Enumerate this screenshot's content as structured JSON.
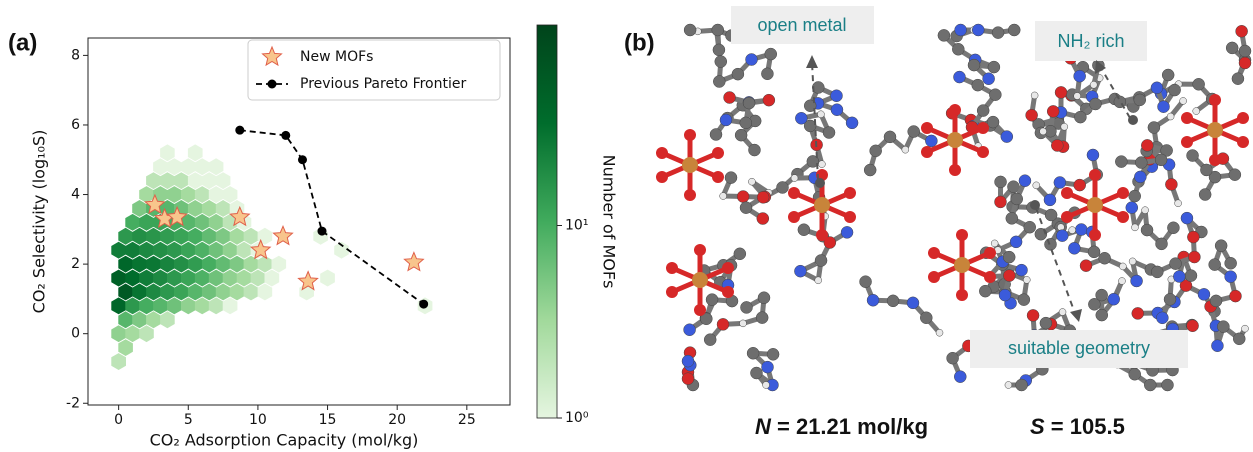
{
  "panel_labels": [
    "(a)",
    "(b)"
  ],
  "chart_data": {
    "type": "hexbin",
    "x_label": "CO₂ Adsorption Capacity (mol/kg)",
    "y_label": "CO₂ Selectivity (log₁₀S)",
    "xlim": [
      -2.2,
      28.1
    ],
    "ylim": [
      -2.05,
      8.5
    ],
    "xticks": [
      0,
      5,
      10,
      15,
      20,
      25
    ],
    "yticks": [
      -2,
      0,
      2,
      4,
      6,
      8
    ],
    "hexbin": [
      {
        "y": -0.8,
        "x": [
          0
        ],
        "counts": [
          2
        ]
      },
      {
        "y": -0.4,
        "x": [
          0.5
        ],
        "counts": [
          3
        ]
      },
      {
        "y": 0.0,
        "x": [
          0,
          1,
          2
        ],
        "counts": [
          4,
          3,
          2
        ]
      },
      {
        "y": 0.4,
        "x": [
          0.5,
          1.5,
          2.5,
          3.5
        ],
        "counts": [
          8,
          5,
          3,
          2
        ]
      },
      {
        "y": 0.8,
        "x": [
          0,
          1,
          2,
          3,
          4,
          5,
          6,
          7,
          8,
          22
        ],
        "counts": [
          40,
          15,
          10,
          8,
          6,
          4,
          3,
          2,
          1,
          1
        ]
      },
      {
        "y": 1.2,
        "x": [
          0.5,
          1.5,
          2.5,
          3.5,
          4.5,
          5.5,
          6.5,
          7.5,
          8.5,
          9.5,
          10.5,
          13.5
        ],
        "counts": [
          60,
          30,
          20,
          15,
          12,
          8,
          6,
          4,
          3,
          2,
          1,
          1
        ]
      },
      {
        "y": 1.6,
        "x": [
          0,
          1,
          2,
          3,
          4,
          5,
          6,
          7,
          8,
          9,
          10,
          11,
          15
        ],
        "counts": [
          50,
          35,
          25,
          20,
          15,
          12,
          9,
          6,
          4,
          3,
          2,
          1,
          1
        ]
      },
      {
        "y": 2.0,
        "x": [
          0.5,
          1.5,
          2.5,
          3.5,
          4.5,
          5.5,
          6.5,
          7.5,
          8.5,
          9.5,
          10.5,
          11.5
        ],
        "counts": [
          40,
          30,
          28,
          22,
          18,
          14,
          10,
          7,
          5,
          3,
          2,
          1
        ]
      },
      {
        "y": 2.4,
        "x": [
          0,
          1,
          2,
          3,
          4,
          5,
          6,
          7,
          8,
          9,
          10,
          16
        ],
        "counts": [
          25,
          25,
          20,
          18,
          15,
          12,
          9,
          6,
          4,
          2,
          1,
          1
        ]
      },
      {
        "y": 2.8,
        "x": [
          0.5,
          1.5,
          2.5,
          3.5,
          4.5,
          5.5,
          6.5,
          7.5,
          8.5,
          9.5,
          10.5,
          14.5
        ],
        "counts": [
          15,
          18,
          16,
          14,
          12,
          10,
          7,
          5,
          3,
          2,
          1,
          1
        ]
      },
      {
        "y": 3.2,
        "x": [
          1,
          2,
          3,
          4,
          5,
          6,
          7,
          8,
          9
        ],
        "counts": [
          10,
          12,
          12,
          10,
          8,
          6,
          4,
          2,
          1
        ]
      },
      {
        "y": 3.6,
        "x": [
          1.5,
          2.5,
          3.5,
          4.5,
          5.5,
          6.5,
          7.5,
          8.5
        ],
        "counts": [
          5,
          8,
          8,
          6,
          4,
          3,
          2,
          1
        ]
      },
      {
        "y": 4.0,
        "x": [
          2,
          3,
          4,
          5,
          6,
          7,
          8
        ],
        "counts": [
          3,
          4,
          4,
          3,
          2,
          1,
          1
        ]
      },
      {
        "y": 4.4,
        "x": [
          2.5,
          3.5,
          4.5,
          5.5,
          6.5,
          7.5
        ],
        "counts": [
          2,
          2,
          2,
          1,
          1,
          1
        ]
      },
      {
        "y": 4.8,
        "x": [
          3,
          4,
          5,
          6,
          7
        ],
        "counts": [
          1,
          1,
          1,
          1,
          1
        ]
      },
      {
        "y": 5.2,
        "x": [
          3.5,
          5.5
        ],
        "counts": [
          1,
          1
        ]
      }
    ],
    "colormap": [
      "#e5f5e0",
      "#a1d99b",
      "#41ab5d",
      "#006d2c",
      "#00441b"
    ],
    "colorbar": {
      "label": "Number of MOFs",
      "scale": "log",
      "lim": [
        1,
        110
      ],
      "ticks": [
        {
          "value": 1,
          "label": "10⁰"
        },
        {
          "value": 10,
          "label": "10¹"
        }
      ]
    },
    "series": [
      {
        "name": "New MOFs",
        "type": "scatter",
        "marker": "star",
        "color": "#f8c58c",
        "edge_color": "#e0604a",
        "x": [
          2.6,
          3.3,
          4.2,
          8.7,
          10.2,
          11.8,
          13.6,
          21.2
        ],
        "y": [
          3.7,
          3.3,
          3.35,
          3.35,
          2.4,
          2.8,
          1.5,
          2.05
        ]
      },
      {
        "name": "Previous Pareto Frontier",
        "type": "line",
        "color": "#000000",
        "dashed": true,
        "x": [
          8.7,
          12.0,
          13.2,
          14.6,
          21.9
        ],
        "y": [
          5.85,
          5.7,
          5.0,
          2.95,
          0.85
        ]
      }
    ],
    "legend": "upper right"
  },
  "panel_b": {
    "annotations": [
      "open metal",
      "NH₂ rich",
      "suitable geometry"
    ],
    "results": [
      {
        "symbol": "N",
        "text": " = 21.21 mol/kg"
      },
      {
        "symbol": "S",
        "text": " = 105.5"
      }
    ]
  }
}
